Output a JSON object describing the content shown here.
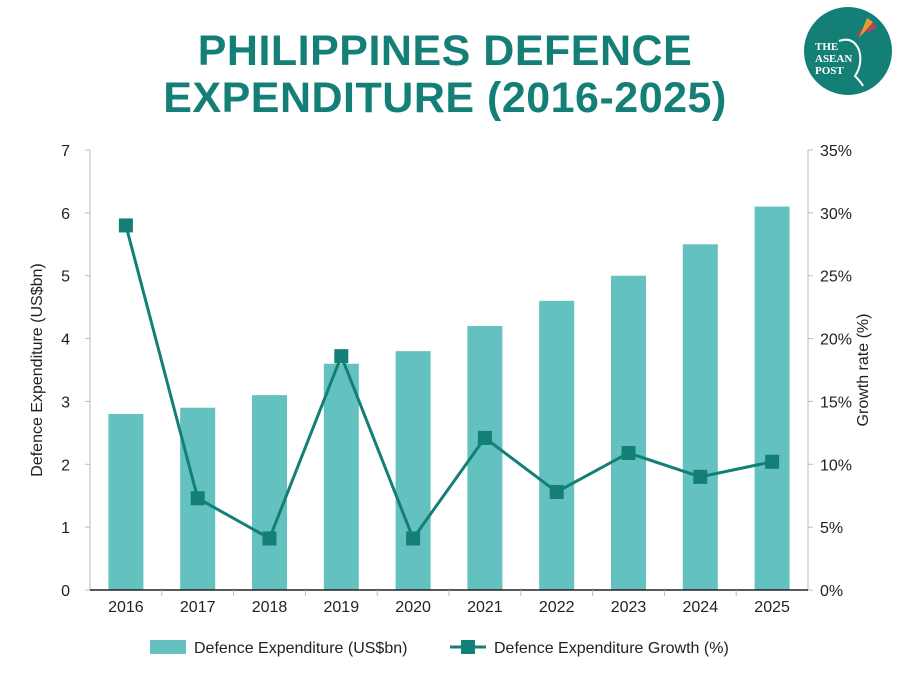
{
  "logo": {
    "text": "THE ASEAN POST",
    "color": "#147f76"
  },
  "chart_data": {
    "type": "bar+line",
    "title": "PHILIPPINES DEFENCE EXPENDITURE (2016-2025)",
    "categories": [
      "2016",
      "2017",
      "2018",
      "2019",
      "2020",
      "2021",
      "2022",
      "2023",
      "2024",
      "2025"
    ],
    "series": [
      {
        "name": "Defence Expenditure (US$bn)",
        "type": "bar",
        "axis": "left",
        "color": "#63c1bf",
        "values": [
          2.8,
          2.9,
          3.1,
          3.6,
          3.8,
          4.2,
          4.6,
          5.0,
          5.5,
          6.1
        ]
      },
      {
        "name": "Defence Expenditure Growth (%)",
        "type": "line",
        "axis": "right",
        "color": "#147f76",
        "marker": "square",
        "values": [
          29.0,
          7.3,
          4.1,
          18.6,
          4.1,
          12.1,
          7.8,
          10.9,
          9.0,
          10.2
        ]
      }
    ],
    "ylabel": "Defence Expenditure (US$bn)",
    "y2label": "Growth rate (%)",
    "ylim": [
      0,
      7
    ],
    "y2lim": [
      0,
      35
    ],
    "yticks": [
      "0",
      "1",
      "2",
      "3",
      "4",
      "5",
      "6",
      "7"
    ],
    "y2ticks": [
      "0%",
      "5%",
      "10%",
      "15%",
      "20%",
      "25%",
      "30%",
      "35%"
    ],
    "grid": false,
    "legend": "bottom"
  }
}
